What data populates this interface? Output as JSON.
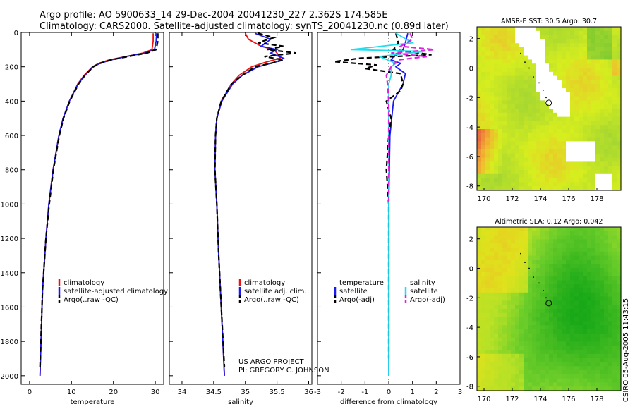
{
  "title": {
    "line1": "Argo profile: AO 5900633_14 29-Dec-2004 20041230_227 2.362S 174.585E",
    "line2": "Climatology: CARS2000. Satellite-adjusted climatology: synTS_20041230.nc (0.89d later)"
  },
  "credit": {
    "line1": "US ARGO PROJECT",
    "line2": "PI: GREGORY C. JOHNSON"
  },
  "stamp": "CSIRO 05-Aug-2005 11:43:15",
  "colors": {
    "red": "#ee1111",
    "blue": "#1a1aee",
    "black": "#000000",
    "cyan": "#22ddee",
    "magenta": "#dd22dd"
  },
  "chart_data": [
    {
      "type": "line",
      "id": "temperature",
      "xlabel": "temperature",
      "ylabel": "",
      "xlim": [
        -2,
        32
      ],
      "ylim": [
        2050,
        0
      ],
      "xticks": [
        0,
        10,
        20,
        30
      ],
      "yticks": [
        0,
        200,
        400,
        600,
        800,
        1000,
        1200,
        1400,
        1600,
        1800,
        2000
      ],
      "legend": [
        "climatology",
        "satellite-adjusted climatology",
        "Argo(..raw -QC)"
      ],
      "series": [
        {
          "name": "climatology",
          "color": "red",
          "depth": [
            5,
            50,
            100,
            120,
            140,
            160,
            180,
            200,
            250,
            300,
            400,
            500,
            600,
            800,
            1000,
            1200,
            1500,
            2000
          ],
          "values": [
            29.5,
            29.5,
            29.2,
            27,
            23,
            19,
            16.5,
            15,
            13,
            11.5,
            9.5,
            8,
            7,
            5.6,
            4.6,
            3.9,
            3.1,
            2.5
          ]
        },
        {
          "name": "satellite-adjusted climatology",
          "color": "blue",
          "depth": [
            5,
            50,
            100,
            120,
            140,
            160,
            180,
            200,
            250,
            300,
            400,
            500,
            600,
            800,
            1000,
            1200,
            1500,
            2000
          ],
          "values": [
            30.3,
            30.2,
            29.8,
            27.5,
            23,
            19.5,
            16.8,
            15.2,
            13.2,
            11.6,
            9.5,
            8,
            7,
            5.6,
            4.6,
            3.9,
            3.1,
            2.5
          ]
        },
        {
          "name": "Argo(..raw -QC)",
          "color": "black",
          "depth": [
            5,
            50,
            100,
            120,
            140,
            160,
            180,
            200,
            250,
            300,
            400,
            500,
            600,
            800,
            1000,
            1200,
            1500,
            1950
          ],
          "values": [
            30.6,
            30.6,
            30.2,
            28,
            23.5,
            19.5,
            16.8,
            15.2,
            13.2,
            11.7,
            9.6,
            8.1,
            7.1,
            5.7,
            4.7,
            3.9,
            3.1,
            2.5
          ]
        }
      ]
    },
    {
      "type": "line",
      "id": "salinity",
      "xlabel": "salinity",
      "ylabel": "",
      "xlim": [
        33.8,
        36.05
      ],
      "ylim": [
        2050,
        0
      ],
      "xticks": [
        34,
        34.5,
        35,
        35.5,
        36
      ],
      "legend": [
        "climatology",
        "satellite adj. clim.",
        "Argo(..raw -QC)"
      ],
      "series": [
        {
          "name": "climatology",
          "color": "red",
          "depth": [
            5,
            40,
            80,
            100,
            120,
            150,
            170,
            200,
            250,
            300,
            400,
            500,
            600,
            800,
            1000,
            1300,
            1600,
            2000
          ],
          "values": [
            35,
            35.05,
            35.25,
            35.45,
            35.5,
            35.55,
            35.35,
            35.1,
            34.9,
            34.78,
            34.62,
            34.55,
            34.53,
            34.52,
            34.55,
            34.58,
            34.62,
            34.67
          ]
        },
        {
          "name": "satellite adj. clim.",
          "color": "blue",
          "depth": [
            5,
            40,
            80,
            100,
            120,
            150,
            170,
            200,
            250,
            300,
            400,
            500,
            600,
            800,
            1000,
            1300,
            1600,
            2000
          ],
          "values": [
            35.15,
            35.4,
            35.25,
            35.5,
            35.4,
            35.6,
            35.5,
            35.2,
            34.95,
            34.8,
            34.63,
            34.55,
            34.53,
            34.52,
            34.55,
            34.58,
            34.62,
            34.67
          ]
        },
        {
          "name": "Argo(..raw -QC)",
          "color": "black",
          "depth": [
            5,
            30,
            60,
            80,
            100,
            120,
            140,
            160,
            180,
            200,
            250,
            300,
            400,
            500,
            600,
            800,
            1000,
            1300,
            1600,
            1950
          ],
          "values": [
            35.2,
            35.45,
            35.2,
            35.6,
            35.35,
            35.8,
            35.3,
            35.6,
            35.4,
            35.15,
            34.95,
            34.78,
            34.62,
            34.55,
            34.53,
            34.52,
            34.55,
            34.58,
            34.62,
            34.67
          ]
        }
      ]
    },
    {
      "type": "line",
      "id": "difference",
      "xlabel": "difference from climatology",
      "ylabel": "",
      "xlim": [
        -3,
        3
      ],
      "ylim": [
        2050,
        0
      ],
      "xticks": [
        -3,
        -2,
        -1,
        0,
        1,
        2,
        3
      ],
      "legend": [
        "temperature",
        "satellite",
        "Argo(-adj)",
        "salinity",
        "satellite",
        "Argo(-adj)"
      ],
      "series": [
        {
          "name": "temperature satellite",
          "color": "blue",
          "depth": [
            5,
            60,
            100,
            120,
            140,
            160,
            180,
            200,
            240,
            300,
            400,
            600,
            1000,
            2000
          ],
          "values": [
            0.8,
            0.7,
            0.6,
            0.5,
            0.2,
            0.1,
            0.5,
            0.3,
            0.7,
            0.6,
            0.2,
            0.05,
            0,
            0
          ]
        },
        {
          "name": "temperature Argo(-adj)",
          "color": "black",
          "depth": [
            5,
            60,
            100,
            130,
            150,
            170,
            190,
            210,
            240,
            300,
            340,
            400,
            500,
            600,
            800,
            1000,
            1200,
            1500,
            1900
          ],
          "values": [
            0.3,
            0.4,
            0.2,
            1.8,
            -1.2,
            -2.3,
            -0.5,
            -1.0,
            0.5,
            0.6,
            0.5,
            -0.1,
            0.1,
            0,
            -0.1,
            0,
            0,
            0,
            0
          ]
        },
        {
          "name": "salinity satellite",
          "color": "cyan",
          "depth": [
            5,
            60,
            100,
            110,
            140,
            180,
            200,
            250,
            300,
            400,
            600,
            1000,
            2000
          ],
          "values": [
            0.3,
            1.0,
            -1.6,
            1.5,
            -0.4,
            0.3,
            0.1,
            0.1,
            0,
            0,
            0,
            0,
            0
          ]
        },
        {
          "name": "salinity Argo(-adj)",
          "color": "magenta",
          "depth": [
            5,
            40,
            80,
            100,
            120,
            140,
            160,
            200,
            250,
            300,
            400,
            600,
            1000
          ],
          "values": [
            0.9,
            1.0,
            0.5,
            1.9,
            0.1,
            1.6,
            0.4,
            0.1,
            -0.1,
            -0.05,
            0,
            0,
            0
          ]
        }
      ]
    },
    {
      "type": "heatmap",
      "id": "sst",
      "title": "AMSR-E SST: 30.5 Argo: 30.7",
      "xlim": [
        169.5,
        179.7
      ],
      "ylim": [
        -8.3,
        2.8
      ],
      "xticks": [
        170,
        172,
        174,
        176,
        178
      ],
      "yticks": [
        2,
        0,
        -2,
        -4,
        -6,
        -8
      ],
      "marker": {
        "lon": 174.585,
        "lat": -2.362
      },
      "colorscale": [
        {
          "v": 0,
          "color": "#2ab02a"
        },
        {
          "v": 0.4,
          "color": "#a8d830"
        },
        {
          "v": 0.6,
          "color": "#d7ee1e"
        },
        {
          "v": 0.8,
          "color": "#f2b531"
        },
        {
          "v": 1,
          "color": "#e8643c"
        }
      ]
    },
    {
      "type": "heatmap",
      "id": "sla",
      "title": "Altimetric SLA: 0.12 Argo: 0.042",
      "xlim": [
        169.5,
        179.7
      ],
      "ylim": [
        -8.3,
        2.8
      ],
      "xticks": [
        170,
        172,
        174,
        176,
        178
      ],
      "yticks": [
        2,
        0,
        -2,
        -4,
        -6,
        -8
      ],
      "marker": {
        "lon": 174.585,
        "lat": -2.362
      },
      "colorscale": [
        {
          "v": 0,
          "color": "#18a818"
        },
        {
          "v": 0.4,
          "color": "#6ece2a"
        },
        {
          "v": 0.6,
          "color": "#b6e126"
        },
        {
          "v": 0.8,
          "color": "#dfe21c"
        },
        {
          "v": 1,
          "color": "#f0b02c"
        }
      ]
    }
  ]
}
